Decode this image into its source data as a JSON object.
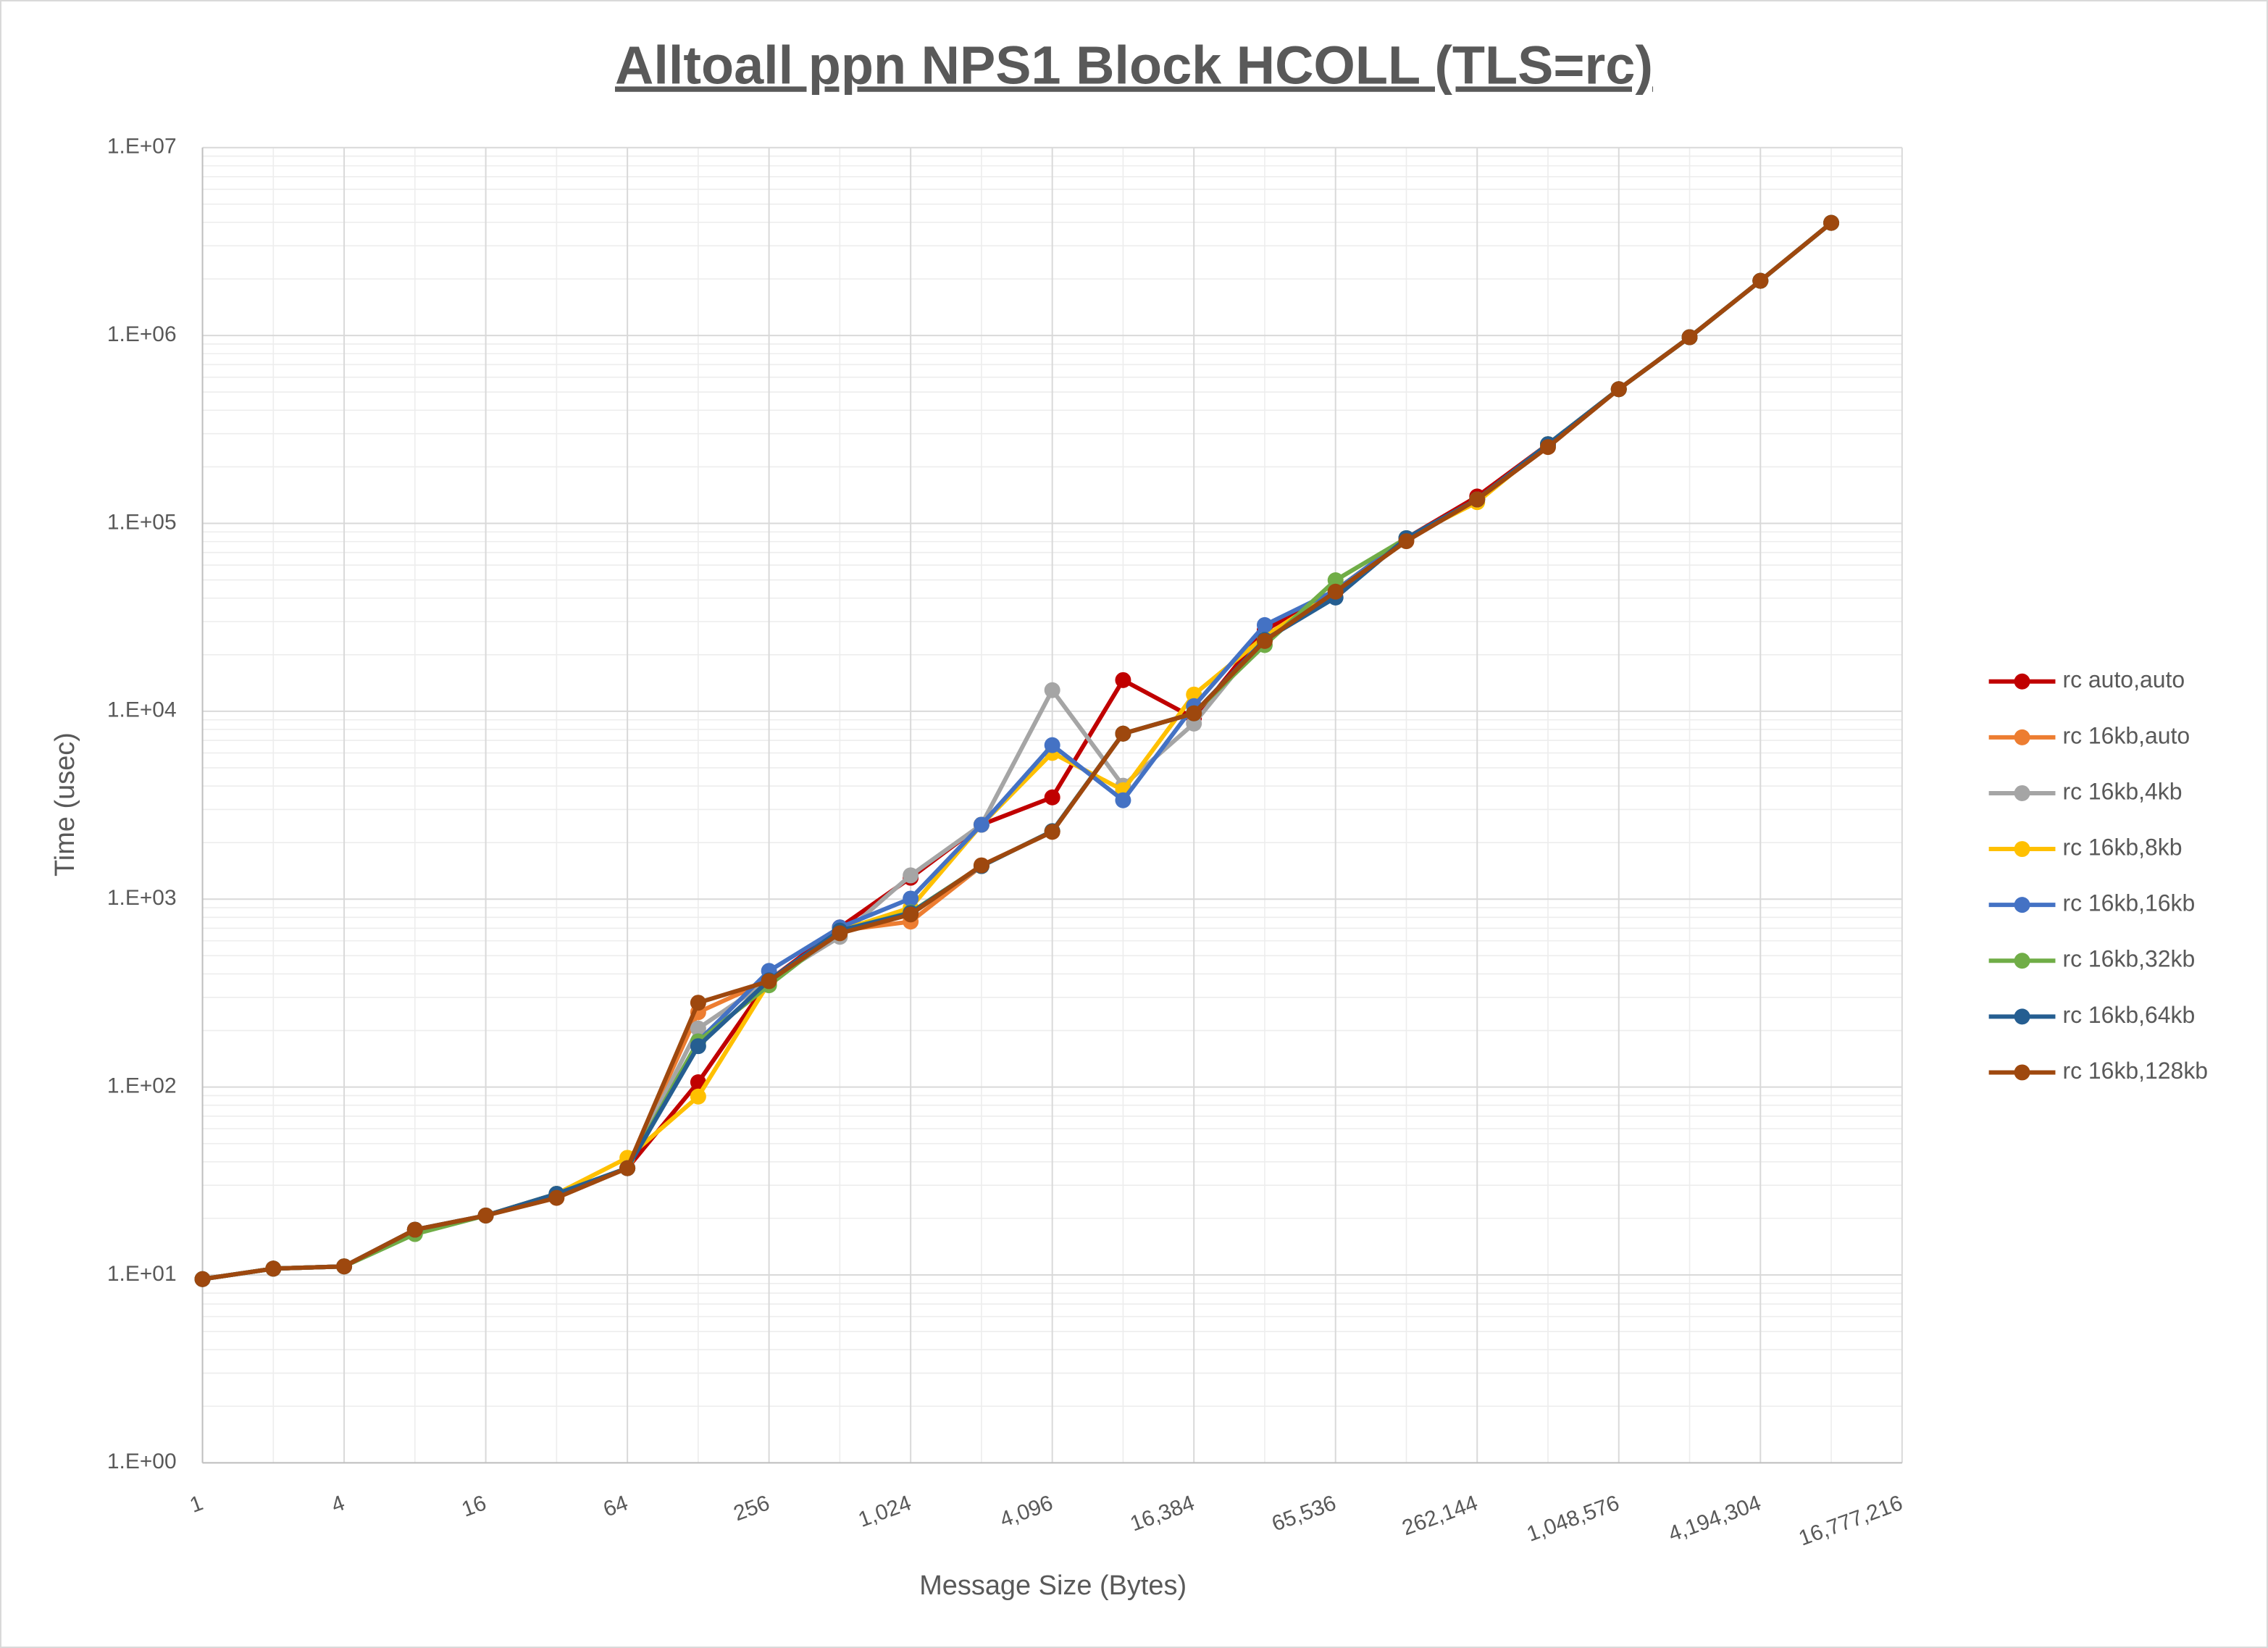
{
  "chart_data": {
    "type": "line",
    "title": "Alltoall ppn NPS1 Block HCOLL (TLS=rc)",
    "x_label": "Message Size (Bytes)",
    "y_label": "Time (usec)",
    "xscale": "log2",
    "yscale": "log10",
    "grid": true,
    "minor_grid": true,
    "legend": "right",
    "xlim": [
      1,
      16777216
    ],
    "xticks": [
      1,
      4,
      16,
      64,
      256,
      {
        "value": 1024,
        "label": "1,024"
      },
      {
        "value": 4096,
        "label": "4,096"
      },
      {
        "value": 16384,
        "label": "16,384"
      },
      {
        "value": 65536,
        "label": "65,536"
      },
      {
        "value": 262144,
        "label": "262,144"
      },
      {
        "value": 1048576,
        "label": "1,048,576"
      },
      {
        "value": 4194304,
        "label": "4,194,304"
      },
      {
        "value": 16777216,
        "label": "16,777,216"
      }
    ],
    "ylim": [
      1,
      10000000
    ],
    "yticks": [
      {
        "value": 1,
        "label": "1.E+00"
      },
      {
        "value": 10,
        "label": "1.E+01"
      },
      {
        "value": 100,
        "label": "1.E+02"
      },
      {
        "value": 1000,
        "label": "1.E+03"
      },
      {
        "value": 10000,
        "label": "1.E+04"
      },
      {
        "value": 100000,
        "label": "1.E+05"
      },
      {
        "value": 1000000,
        "label": "1.E+06"
      },
      {
        "value": 10000000,
        "label": "1.E+07"
      }
    ],
    "x": [
      1,
      2,
      4,
      8,
      16,
      32,
      64,
      128,
      256,
      512,
      1024,
      2048,
      4096,
      8192,
      16384,
      32768,
      65536,
      131072,
      262144,
      524288,
      1048576,
      2097152,
      4194304,
      8388608
    ],
    "series": [
      {
        "name": "rc auto,auto",
        "color": "#c00000",
        "values": [
          9.5,
          10.8,
          11.1,
          17.4,
          20.7,
          27,
          37,
          106,
          370,
          707,
          1300,
          2490,
          3480,
          14650,
          9200,
          27000,
          44000,
          83400,
          139000,
          263800,
          517800,
          979000,
          1955000,
          3975000
        ]
      },
      {
        "name": "rc 16kb,auto",
        "color": "#ed7d31",
        "values": [
          9.5,
          10.8,
          11.1,
          17.4,
          20.7,
          27,
          37,
          250,
          370,
          680,
          759,
          1500,
          2300,
          7600,
          9750,
          24000,
          44000,
          83400,
          134000,
          263800,
          517800,
          979000,
          1955000,
          3975000
        ]
      },
      {
        "name": "rc 16kb,4kb",
        "color": "#a5a5a5",
        "values": [
          9.5,
          10.8,
          11.1,
          17.4,
          20.7,
          27,
          37,
          205,
          370,
          630,
          1338,
          2490,
          12950,
          4015,
          8600,
          25000,
          44000,
          83400,
          134000,
          263800,
          517800,
          979000,
          1955000,
          3975000
        ]
      },
      {
        "name": "rc 16kb,8kb",
        "color": "#ffc000",
        "values": [
          9.5,
          10.8,
          11.1,
          17.4,
          20.7,
          27,
          42,
          89,
          360,
          680,
          900,
          2490,
          6000,
          3800,
          12270,
          25000,
          44000,
          83400,
          129700,
          263800,
          517800,
          979000,
          1955000,
          3975000
        ]
      },
      {
        "name": "rc 16kb,16kb",
        "color": "#4472c4",
        "values": [
          9.5,
          10.8,
          11.1,
          17.4,
          20.7,
          27,
          37,
          175,
          415,
          707,
          1007,
          2490,
          6600,
          3360,
          10650,
          28750,
          44000,
          83400,
          134000,
          263800,
          517800,
          979000,
          1955000,
          3975000
        ]
      },
      {
        "name": "rc 16kb,32kb",
        "color": "#70ad47",
        "values": [
          9.5,
          10.8,
          11.1,
          16.5,
          20.7,
          27,
          37,
          175,
          348,
          680,
          850,
          1500,
          2300,
          7600,
          9750,
          22500,
          49800,
          83400,
          134000,
          263800,
          517800,
          979000,
          1955000,
          3975000
        ]
      },
      {
        "name": "rc 16kb,64kb",
        "color": "#255e91",
        "values": [
          9.5,
          10.8,
          11.1,
          17.4,
          20.7,
          27,
          37,
          165,
          370,
          680,
          844,
          1500,
          2300,
          7600,
          9750,
          24000,
          40300,
          83400,
          134000,
          263800,
          517800,
          979000,
          1955000,
          3975000
        ]
      },
      {
        "name": "rc 16kb,128kb",
        "color": "#9e480e",
        "values": [
          9.5,
          10.8,
          11.1,
          17.4,
          20.7,
          25.7,
          37,
          281,
          366,
          658,
          829,
          1513,
          2280,
          7600,
          9750,
          23650,
          43300,
          80400,
          134000,
          254800,
          517800,
          979000,
          1955000,
          3975000
        ]
      }
    ]
  }
}
